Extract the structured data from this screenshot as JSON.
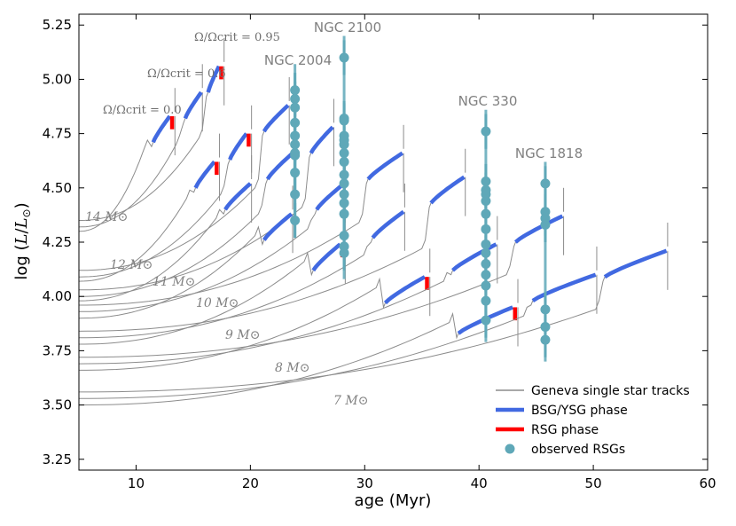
{
  "chart_data": {
    "type": "line",
    "xlabel": "age (Myr)",
    "ylabel": "log (L/L⊙)",
    "xlim": [
      5,
      60
    ],
    "ylim": [
      3.2,
      5.3
    ],
    "xticks": [
      "10",
      "20",
      "30",
      "40",
      "50",
      "60"
    ],
    "yticks": [
      "3.25",
      "3.50",
      "3.75",
      "4.00",
      "4.25",
      "4.50",
      "4.75",
      "5.00",
      "5.25"
    ],
    "legend": [
      {
        "label": "Geneva single star tracks",
        "kind": "track"
      },
      {
        "label": "BSG/YSG phase",
        "kind": "bsg"
      },
      {
        "label": "RSG phase",
        "kind": "rsg"
      },
      {
        "label": "observed RSGs",
        "kind": "obs"
      }
    ],
    "legend_position": "lower-right",
    "colors": {
      "track": "#8c8c8c",
      "bsg": "#4169e1",
      "rsg": "#ff0000",
      "obs": "#5fa8b8",
      "label_gray": "#808080"
    },
    "omega_labels": [
      "Ω/Ωcrit = 0.0",
      "Ω/Ωcrit = 0.6",
      "Ω/Ωcrit = 0.95"
    ],
    "mass_tracks": [
      {
        "label": "14 M⊙",
        "mass": 14,
        "base": [
          4.3,
          4.32,
          4.35
        ],
        "blue_start": [
          11.5,
          14.3,
          16.3
        ],
        "end": [
          13.3,
          15.7,
          17.6
        ],
        "bsg_end": [
          4.83,
          4.94,
          5.06
        ],
        "rsg": [
          true,
          false,
          true
        ]
      },
      {
        "label": "12 M⊙",
        "mass": 12,
        "base": [
          4.07,
          4.09,
          4.12
        ],
        "blue_start": [
          15.2,
          18.2,
          21.2
        ],
        "end": [
          17.2,
          20.0,
          23.3
        ],
        "bsg_end": [
          4.62,
          4.75,
          4.88
        ],
        "rsg": [
          true,
          true,
          false
        ]
      },
      {
        "label": "11 M⊙",
        "mass": 11,
        "base": [
          3.98,
          4.0,
          4.03
        ],
        "blue_start": [
          17.8,
          21.5,
          25.3
        ],
        "end": [
          20.0,
          23.7,
          27.2
        ],
        "bsg_end": [
          4.52,
          4.66,
          4.78
        ],
        "rsg": [
          false,
          false,
          false
        ]
      },
      {
        "label": "10 M⊙",
        "mass": 10,
        "base": [
          3.9,
          3.93,
          3.96
        ],
        "blue_start": [
          21.2,
          25.8,
          30.3
        ],
        "end": [
          23.6,
          28.2,
          33.3
        ],
        "bsg_end": [
          4.38,
          4.52,
          4.66
        ],
        "rsg": [
          false,
          false,
          false
        ]
      },
      {
        "label": "9 M⊙",
        "mass": 9,
        "base": [
          3.78,
          3.81,
          3.84
        ],
        "blue_start": [
          25.5,
          30.7,
          35.8
        ],
        "end": [
          28.2,
          33.4,
          38.7
        ],
        "bsg_end": [
          4.24,
          4.39,
          4.55
        ],
        "rsg": [
          true,
          false,
          false
        ]
      },
      {
        "label": "8 M⊙",
        "mass": 8,
        "base": [
          3.66,
          3.69,
          3.72
        ],
        "blue_start": [
          31.8,
          37.7,
          43.2
        ],
        "end": [
          35.6,
          41.5,
          47.3
        ],
        "bsg_end": [
          4.09,
          4.24,
          4.37
        ],
        "rsg": [
          true,
          false,
          false
        ]
      },
      {
        "label": "7 M⊙",
        "mass": 7,
        "base": [
          3.5,
          3.53,
          3.56
        ],
        "blue_start": [
          38.2,
          44.7,
          51.0
        ],
        "end": [
          43.3,
          50.2,
          56.4
        ],
        "bsg_end": [
          3.95,
          4.1,
          4.21
        ],
        "rsg": [
          true,
          false,
          false
        ]
      }
    ],
    "clusters": [
      {
        "name": "NGC 2004",
        "age": 23.9,
        "lum": [
          4.35,
          4.47,
          4.57,
          4.65,
          4.66,
          4.7,
          4.74,
          4.8,
          4.87,
          4.91,
          4.95
        ],
        "err_range": [
          4.27,
          5.07
        ]
      },
      {
        "name": "NGC 2100",
        "age": 28.2,
        "lum": [
          4.2,
          4.23,
          4.28,
          4.38,
          4.43,
          4.47,
          4.52,
          4.56,
          4.62,
          4.66,
          4.7,
          4.72,
          4.74,
          4.81,
          4.82,
          5.1
        ],
        "err_range": [
          4.08,
          5.2
        ]
      },
      {
        "name": "NGC 330",
        "age": 40.6,
        "lum": [
          3.89,
          3.98,
          4.05,
          4.1,
          4.15,
          4.2,
          4.24,
          4.31,
          4.38,
          4.44,
          4.47,
          4.49,
          4.53,
          4.76
        ],
        "err_range": [
          3.79,
          4.86
        ]
      },
      {
        "name": "NGC 1818",
        "age": 45.8,
        "lum": [
          3.8,
          3.86,
          3.94,
          4.33,
          4.36,
          4.39,
          4.52
        ],
        "err_range": [
          3.7,
          4.62
        ]
      }
    ]
  }
}
